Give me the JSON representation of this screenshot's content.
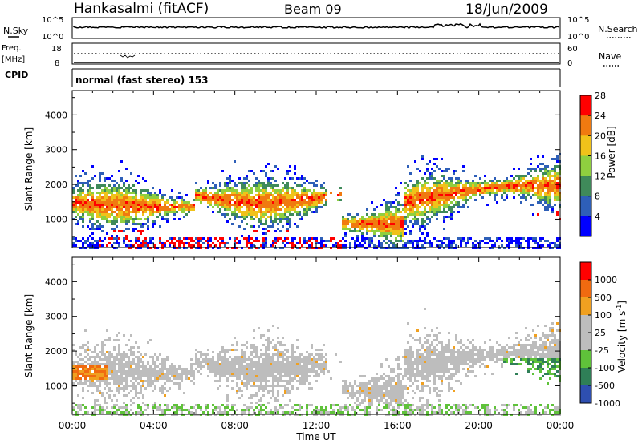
{
  "header": {
    "station": "Hankasalmi (fitACF)",
    "beam": "Beam 09",
    "date": "18/Jun/2009"
  },
  "noise_panel": {
    "left_label": "N.Sky",
    "right_label": "N.Search",
    "tick_top": "10^5",
    "tick_bottom": "10^0"
  },
  "freq_panel": {
    "left_label_1": "Freq.",
    "left_label_2": "[MHz]",
    "left_tick_top": "18",
    "left_tick_bottom": "8",
    "right_label": "Nave",
    "right_tick_top": "60",
    "right_tick_bottom": "0"
  },
  "cpid_panel": {
    "label": "CPID",
    "mode_text": "normal (fast stereo) 153"
  },
  "chart_data": [
    {
      "type": "heatmap",
      "name": "power",
      "ylabel": "Slant Range [km]",
      "xlabel": "Time UT",
      "y_ticks": [
        "1000",
        "2000",
        "3000",
        "4000"
      ],
      "x_ticks": [
        "00:00",
        "04:00",
        "08:00",
        "12:00",
        "16:00",
        "20:00",
        "00:00"
      ],
      "ylim": [
        180,
        4700
      ],
      "colorbar_label": "Power [dB]",
      "colorbar_ticks": [
        "4",
        "8",
        "12",
        "16",
        "20",
        "24",
        "28"
      ],
      "colors": [
        "#0000ff",
        "#2e5fb8",
        "#3f8a5a",
        "#8fcf3f",
        "#f0c21a",
        "#f07a10",
        "#ff0000"
      ]
    },
    {
      "type": "heatmap",
      "name": "velocity",
      "ylabel": "Slant Range [km]",
      "xlabel": "Time UT",
      "y_ticks": [
        "1000",
        "2000",
        "3000",
        "4000"
      ],
      "x_ticks": [
        "00:00",
        "04:00",
        "08:00",
        "12:00",
        "16:00",
        "20:00",
        "00:00"
      ],
      "ylim": [
        180,
        4700
      ],
      "colorbar_label": "Velocity [m s",
      "colorbar_label_sup": "-1",
      "colorbar_label_end": "]",
      "colorbar_ticks": [
        "1000",
        "500",
        "100",
        "25",
        "-25",
        "-100",
        "-500",
        "-1000"
      ],
      "colors": [
        "#2e4fb0",
        "#2f7f57",
        "#5fc23a",
        "#bdbdbd",
        "#bdbdbd",
        "#f0a020",
        "#f06a10",
        "#ff0000"
      ]
    }
  ]
}
